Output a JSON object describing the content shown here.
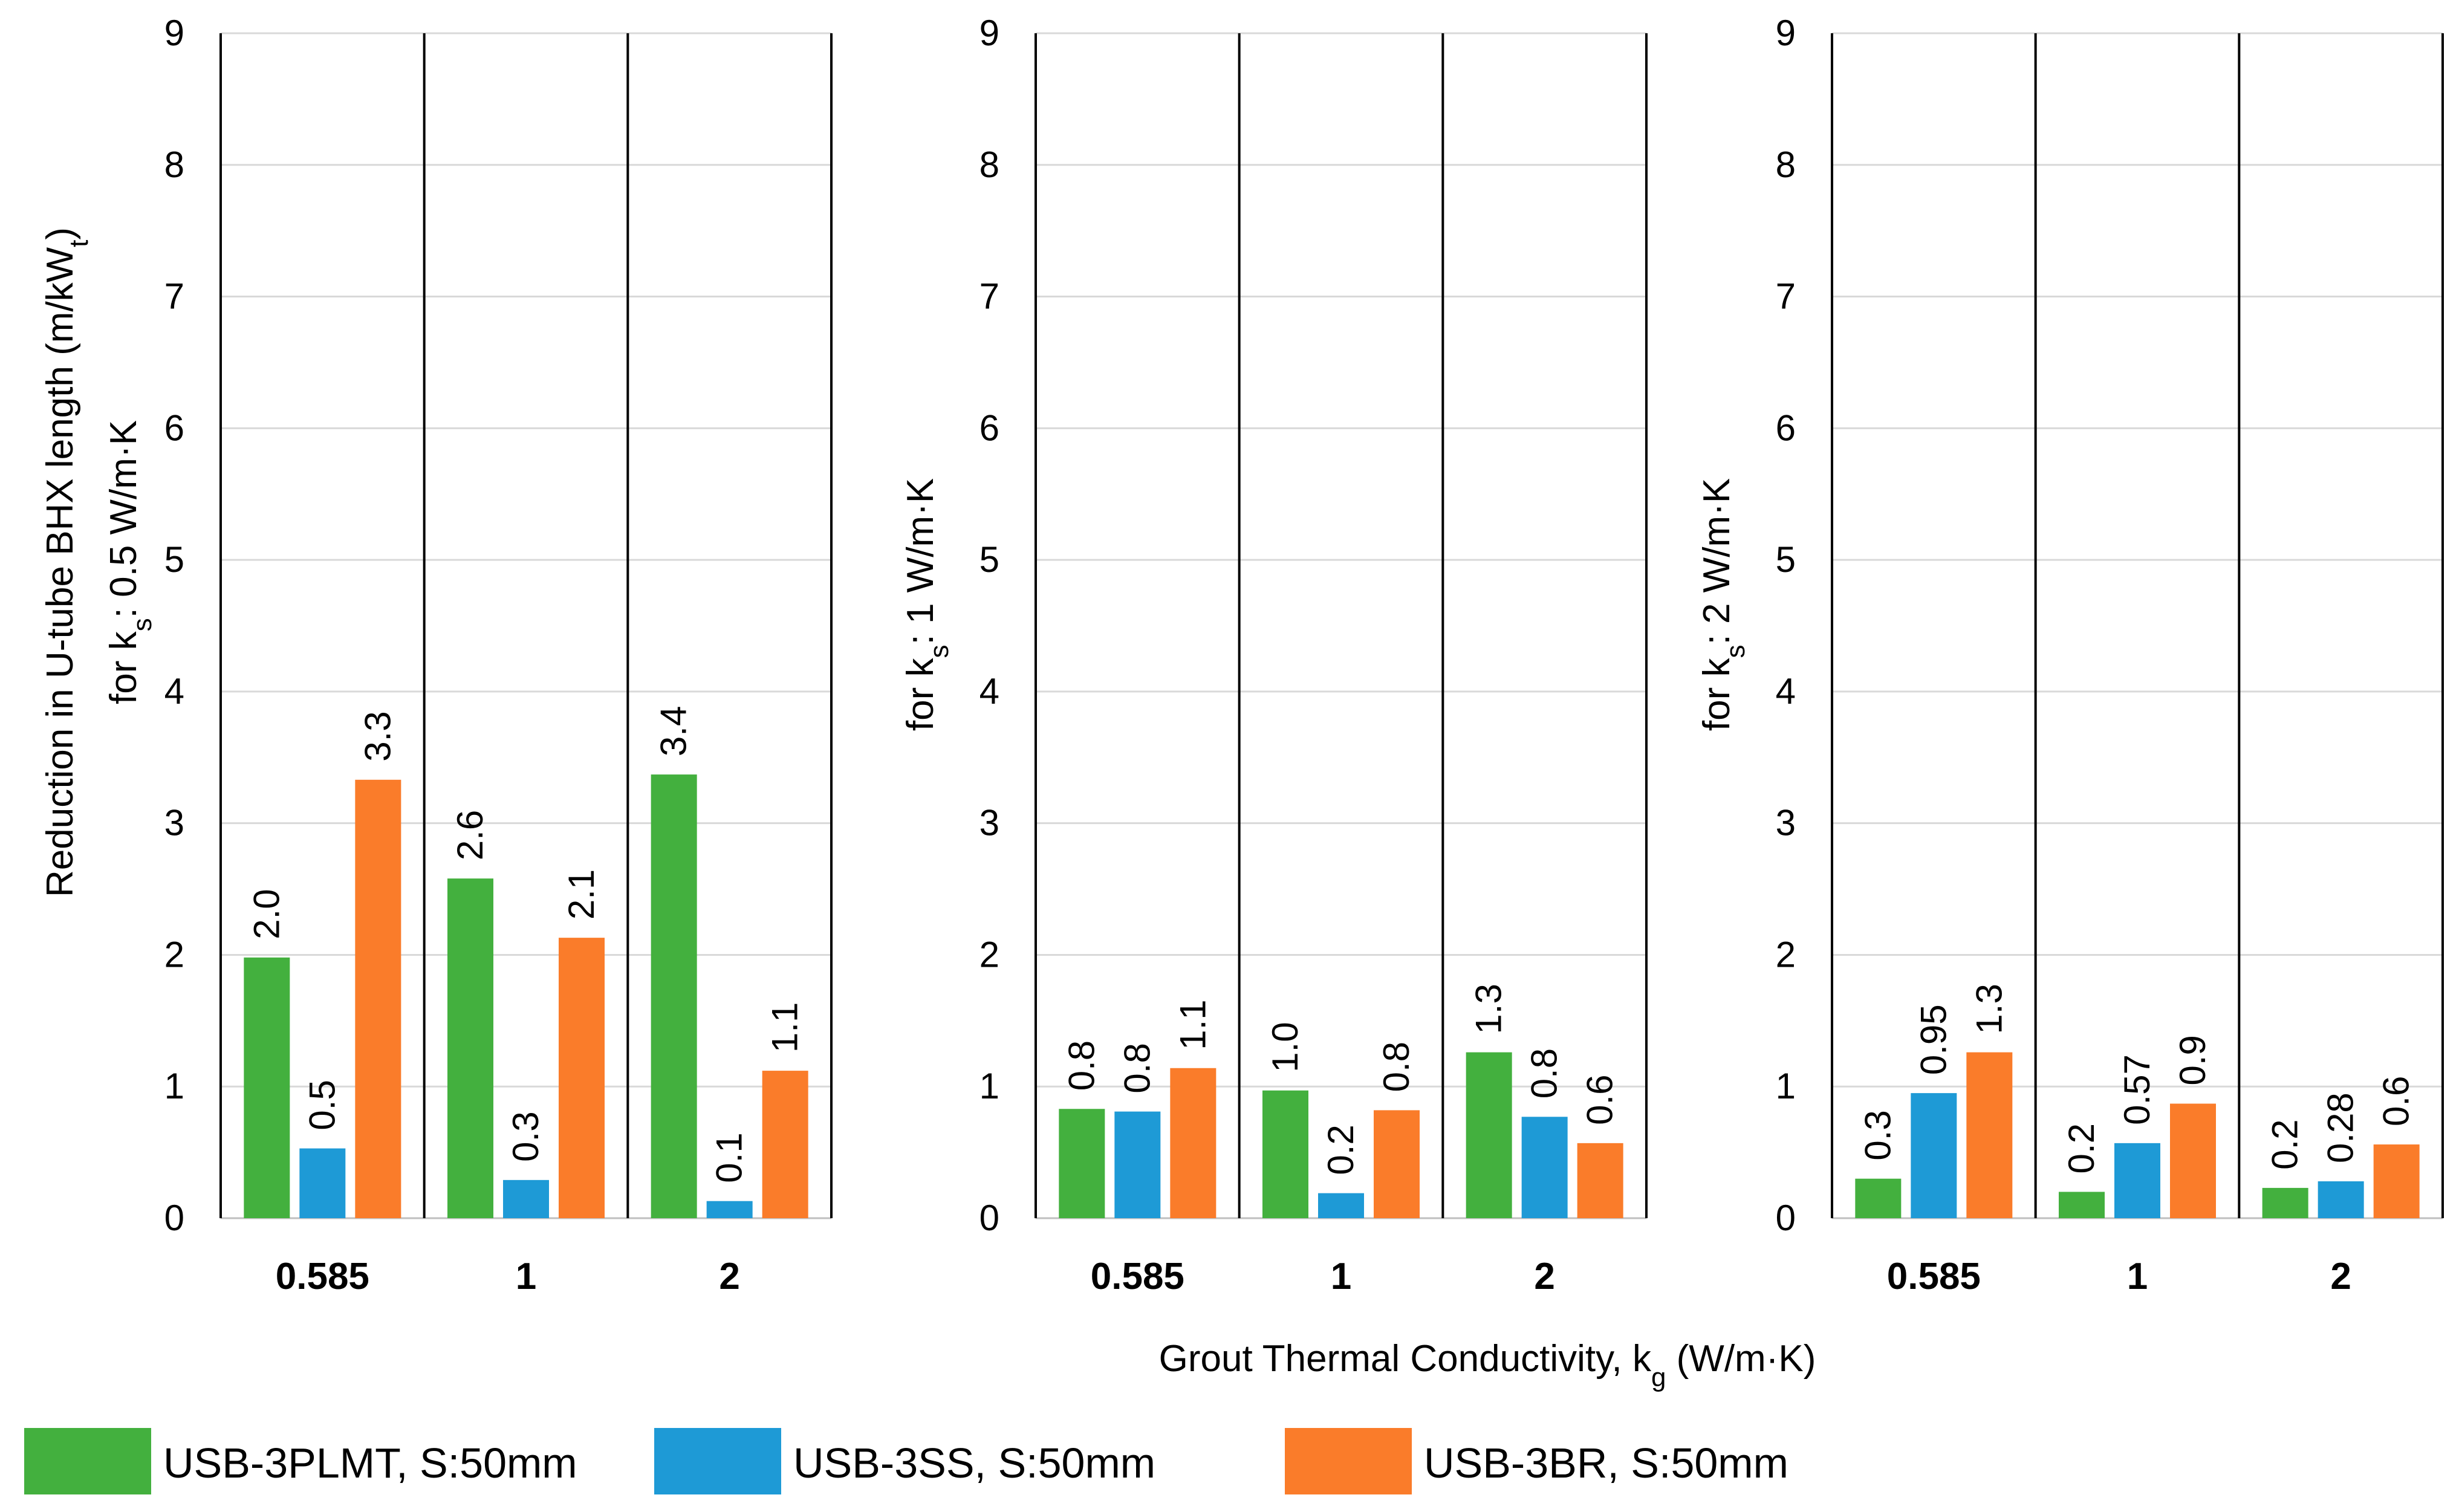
{
  "chart_data": {
    "type": "bar",
    "x_axis_title": {
      "prefix": "Grout Thermal Conductivity,  k",
      "sub": "g",
      "suffix": " (W/m·K)"
    },
    "y_axis_title": {
      "line1_prefix": "Reduction in U-tube BHX length (m/kW",
      "line1_sub": "t",
      "line1_suffix": ")"
    },
    "ylim": [
      0,
      9
    ],
    "yticks": [
      "0",
      "1",
      "2",
      "3",
      "4",
      "5",
      "6",
      "7",
      "8",
      "9"
    ],
    "grid": true,
    "legend_position": "bottom",
    "series": [
      {
        "name": "USB-3PLMT, S:50mm",
        "color": "#43B03E"
      },
      {
        "name": "USB-3SS, S:50mm",
        "color": "#1E9AD6"
      },
      {
        "name": "USB-3BR, S:50mm",
        "color": "#FA7C2A"
      }
    ],
    "panels": [
      {
        "ylabel_prefix": "for k",
        "ylabel_sub": "s",
        "ylabel_suffix": ": 0.5 W/m·K",
        "categories": [
          "0.585",
          "1",
          "2"
        ],
        "values": [
          [
            1.98,
            0.53,
            3.33
          ],
          [
            2.58,
            0.29,
            2.13
          ],
          [
            3.37,
            0.13,
            1.12
          ]
        ],
        "labels": [
          [
            "2.0",
            "0.5",
            "3.3"
          ],
          [
            "2.6",
            "0.3",
            "2.1"
          ],
          [
            "3.4",
            "0.1",
            "1.1"
          ]
        ]
      },
      {
        "ylabel_prefix": "for k",
        "ylabel_sub": "s",
        "ylabel_suffix": ": 1 W/m·K",
        "categories": [
          "0.585",
          "1",
          "2"
        ],
        "values": [
          [
            0.83,
            0.81,
            1.14
          ],
          [
            0.97,
            0.19,
            0.82
          ],
          [
            1.26,
            0.77,
            0.57
          ]
        ],
        "labels": [
          [
            "0.8",
            "0.8",
            "1.1"
          ],
          [
            "1.0",
            "0.2",
            "0.8"
          ],
          [
            "1.3",
            "0.8",
            "0.6"
          ]
        ]
      },
      {
        "ylabel_prefix": "for k",
        "ylabel_sub": "s",
        "ylabel_suffix": ": 2 W/m·K",
        "categories": [
          "0.585",
          "1",
          "2"
        ],
        "values": [
          [
            0.3,
            0.95,
            1.26
          ],
          [
            0.2,
            0.57,
            0.87
          ],
          [
            0.23,
            0.28,
            0.56
          ]
        ],
        "labels": [
          [
            "0.3",
            "0.95",
            "1.3"
          ],
          [
            "0.2",
            "0.57",
            "0.9"
          ],
          [
            "0.2",
            "0.28",
            "0.6"
          ]
        ]
      }
    ]
  }
}
